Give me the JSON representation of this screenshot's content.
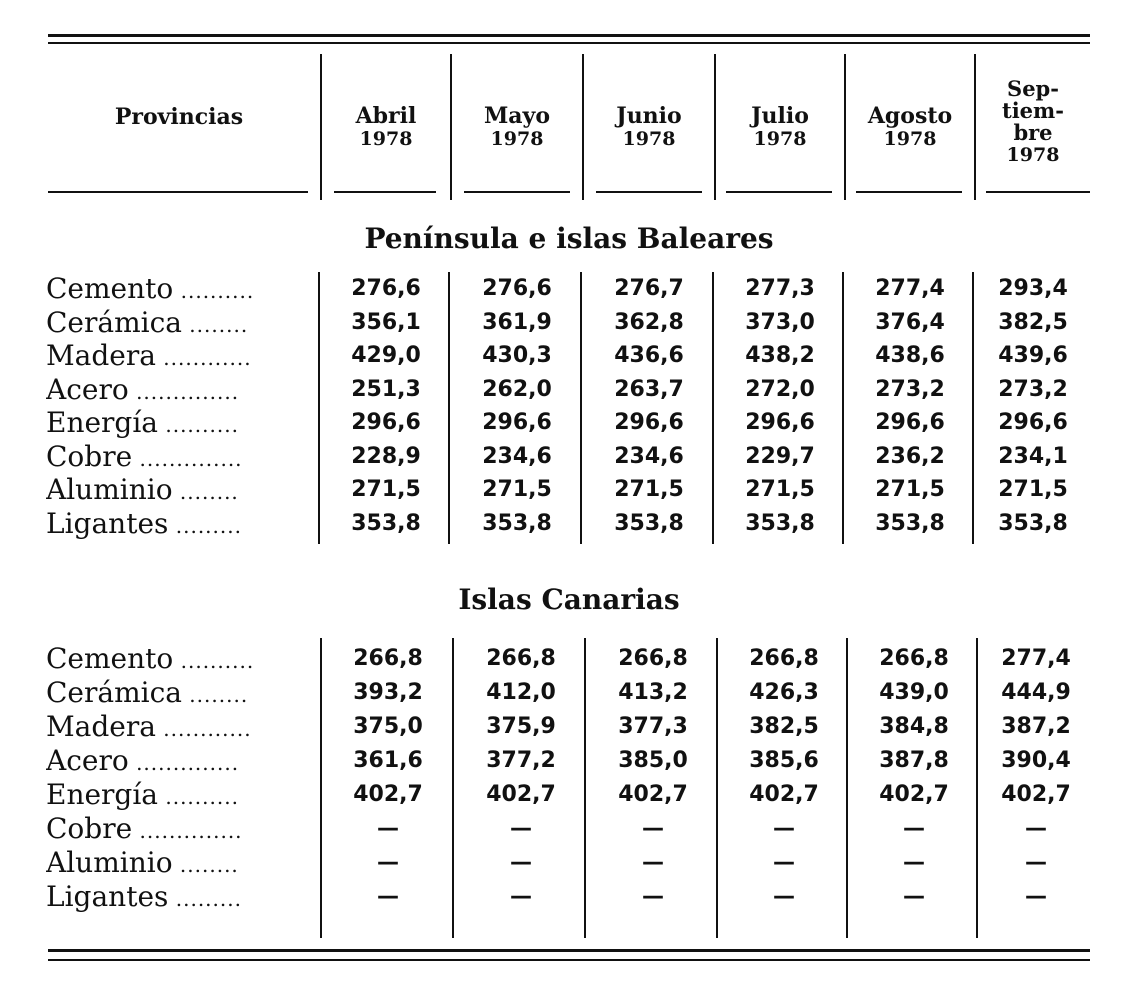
{
  "header": {
    "provincias": "Provincias",
    "months": [
      {
        "month": "Abril",
        "year": "1978"
      },
      {
        "month": "Mayo",
        "year": "1978"
      },
      {
        "month": "Junio",
        "year": "1978"
      },
      {
        "month": "Julio",
        "year": "1978"
      },
      {
        "month": "Agosto",
        "year": "1978"
      },
      {
        "month_lines": [
          "Sep-",
          "tiem-",
          "bre"
        ],
        "year": "1978"
      }
    ]
  },
  "sections": [
    {
      "title": "Península e islas Baleares",
      "rows": [
        {
          "label": "Cemento",
          "values": [
            "276,6",
            "276,6",
            "276,7",
            "277,3",
            "277,4",
            "293,4"
          ]
        },
        {
          "label": "Cerámica",
          "values": [
            "356,1",
            "361,9",
            "362,8",
            "373,0",
            "376,4",
            "382,5"
          ]
        },
        {
          "label": "Madera",
          "values": [
            "429,0",
            "430,3",
            "436,6",
            "438,2",
            "438,6",
            "439,6"
          ]
        },
        {
          "label": "Acero",
          "values": [
            "251,3",
            "262,0",
            "263,7",
            "272,0",
            "273,2",
            "273,2"
          ]
        },
        {
          "label": "Energía",
          "values": [
            "296,6",
            "296,6",
            "296,6",
            "296,6",
            "296,6",
            "296,6"
          ]
        },
        {
          "label": "Cobre",
          "values": [
            "228,9",
            "234,6",
            "234,6",
            "229,7",
            "236,2",
            "234,1"
          ]
        },
        {
          "label": "Aluminio",
          "values": [
            "271,5",
            "271,5",
            "271,5",
            "271,5",
            "271,5",
            "271,5"
          ]
        },
        {
          "label": "Ligantes",
          "values": [
            "353,8",
            "353,8",
            "353,8",
            "353,8",
            "353,8",
            "353,8"
          ]
        }
      ]
    },
    {
      "title": "Islas Canarias",
      "rows": [
        {
          "label": "Cemento",
          "values": [
            "266,8",
            "266,8",
            "266,8",
            "266,8",
            "266,8",
            "277,4"
          ]
        },
        {
          "label": "Cerámica",
          "values": [
            "393,2",
            "412,0",
            "413,2",
            "426,3",
            "439,0",
            "444,9"
          ]
        },
        {
          "label": "Madera",
          "values": [
            "375,0",
            "375,9",
            "377,3",
            "382,5",
            "384,8",
            "387,2"
          ]
        },
        {
          "label": "Acero",
          "values": [
            "361,6",
            "377,2",
            "385,0",
            "385,6",
            "387,8",
            "390,4"
          ]
        },
        {
          "label": "Energía",
          "values": [
            "402,7",
            "402,7",
            "402,7",
            "402,7",
            "402,7",
            "402,7"
          ]
        },
        {
          "label": "Cobre",
          "values": [
            "—",
            "—",
            "—",
            "—",
            "—",
            "—"
          ]
        },
        {
          "label": "Aluminio",
          "values": [
            "—",
            "—",
            "—",
            "—",
            "—",
            "—"
          ]
        },
        {
          "label": "Ligantes",
          "values": [
            "—",
            "—",
            "—",
            "—",
            "—",
            "—"
          ]
        }
      ]
    }
  ]
}
